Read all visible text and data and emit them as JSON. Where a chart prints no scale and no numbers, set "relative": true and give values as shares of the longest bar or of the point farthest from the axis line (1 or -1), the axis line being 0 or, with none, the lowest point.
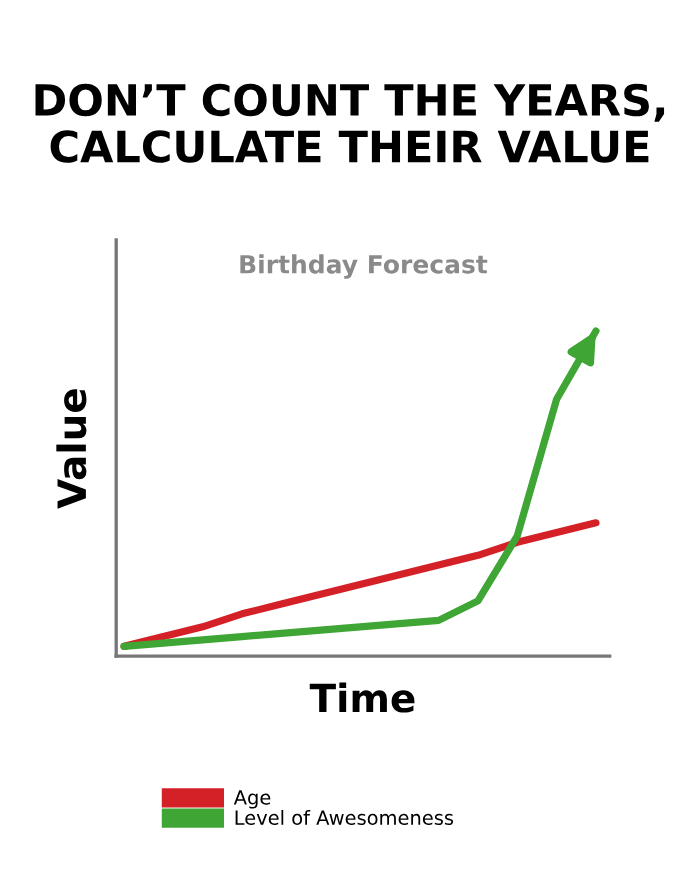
{
  "chart_data": {
    "type": "line",
    "title": "DON’T COUNT THE YEARS,\nCALCULATE THEIR VALUE",
    "subtitle": "Birthday Forecast",
    "xlabel": "Time",
    "ylabel": "Value",
    "relative": true,
    "categories": [
      null,
      null,
      null,
      null,
      null,
      null,
      null,
      null,
      null,
      null,
      null,
      null,
      null
    ],
    "series": [
      {
        "name": "Age",
        "color": "#d42027",
        "values": [
          0.03,
          0.06,
          0.09,
          0.13,
          0.16,
          0.19,
          0.22,
          0.25,
          0.28,
          0.31,
          0.35,
          0.38,
          0.41
        ]
      },
      {
        "name": "Level of Awesomeness",
        "color": "#3fa535",
        "values": [
          0.03,
          0.04,
          0.05,
          0.06,
          0.07,
          0.08,
          0.09,
          0.1,
          0.11,
          0.17,
          0.37,
          0.79,
          1.0
        ]
      }
    ],
    "legend": "bottom",
    "grid": false
  }
}
